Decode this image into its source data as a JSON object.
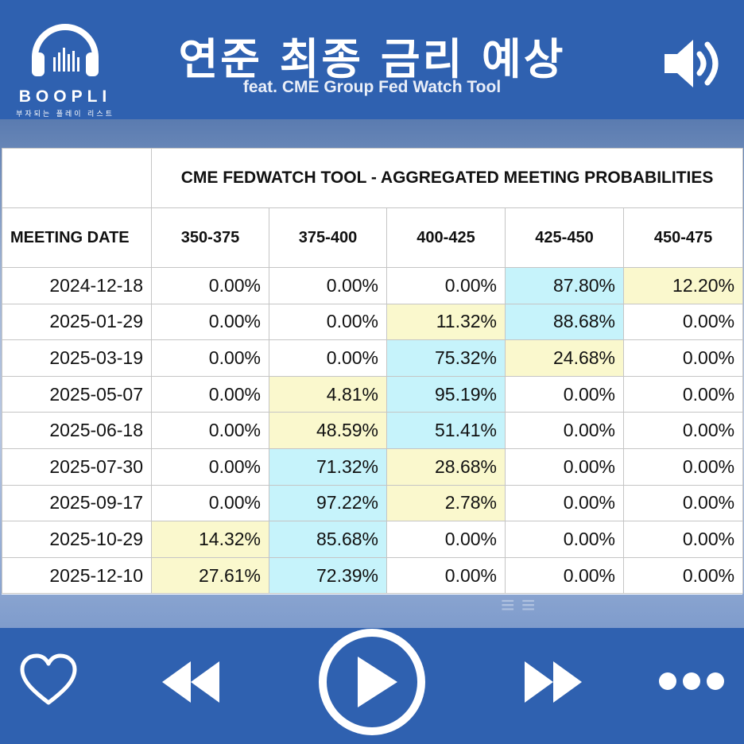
{
  "header": {
    "logo_name": "BOOPLI",
    "logo_tagline": "부자되는 플레이 리스트",
    "title": "연준 최종 금리 예상",
    "subtitle": "feat. CME Group Fed Watch Tool"
  },
  "table": {
    "title": "CME FEDWATCH TOOL - AGGREGATED MEETING PROBABILITIES",
    "date_header": "MEETING DATE",
    "columns": [
      "350-375",
      "375-400",
      "400-425",
      "425-450",
      "450-475"
    ],
    "rows": [
      {
        "date": "2024-12-18",
        "values": [
          "0.00%",
          "0.00%",
          "0.00%",
          "87.80%",
          "12.20%"
        ],
        "highlight": [
          "",
          "",
          "",
          "cyan",
          "yellow"
        ]
      },
      {
        "date": "2025-01-29",
        "values": [
          "0.00%",
          "0.00%",
          "11.32%",
          "88.68%",
          "0.00%"
        ],
        "highlight": [
          "",
          "",
          "yellow",
          "cyan",
          ""
        ]
      },
      {
        "date": "2025-03-19",
        "values": [
          "0.00%",
          "0.00%",
          "75.32%",
          "24.68%",
          "0.00%"
        ],
        "highlight": [
          "",
          "",
          "cyan",
          "yellow",
          ""
        ]
      },
      {
        "date": "2025-05-07",
        "values": [
          "0.00%",
          "4.81%",
          "95.19%",
          "0.00%",
          "0.00%"
        ],
        "highlight": [
          "",
          "yellow",
          "cyan",
          "",
          ""
        ]
      },
      {
        "date": "2025-06-18",
        "values": [
          "0.00%",
          "48.59%",
          "51.41%",
          "0.00%",
          "0.00%"
        ],
        "highlight": [
          "",
          "yellow",
          "cyan",
          "",
          ""
        ]
      },
      {
        "date": "2025-07-30",
        "values": [
          "0.00%",
          "71.32%",
          "28.68%",
          "0.00%",
          "0.00%"
        ],
        "highlight": [
          "",
          "cyan",
          "yellow",
          "",
          ""
        ]
      },
      {
        "date": "2025-09-17",
        "values": [
          "0.00%",
          "97.22%",
          "2.78%",
          "0.00%",
          "0.00%"
        ],
        "highlight": [
          "",
          "cyan",
          "yellow",
          "",
          ""
        ]
      },
      {
        "date": "2025-10-29",
        "values": [
          "14.32%",
          "85.68%",
          "0.00%",
          "0.00%",
          "0.00%"
        ],
        "highlight": [
          "yellow",
          "cyan",
          "",
          "",
          ""
        ]
      },
      {
        "date": "2025-12-10",
        "values": [
          "27.61%",
          "72.39%",
          "0.00%",
          "0.00%",
          "0.00%"
        ],
        "highlight": [
          "yellow",
          "cyan",
          "",
          "",
          ""
        ]
      }
    ]
  },
  "controls": {
    "icons": [
      "heart-icon",
      "rewind-icon",
      "play-icon",
      "fast-forward-icon",
      "more-icon"
    ]
  },
  "colors": {
    "header_bg": "#2f61b0",
    "cyan_highlight": "#c6f3fb",
    "yellow_highlight": "#faf8cd"
  }
}
